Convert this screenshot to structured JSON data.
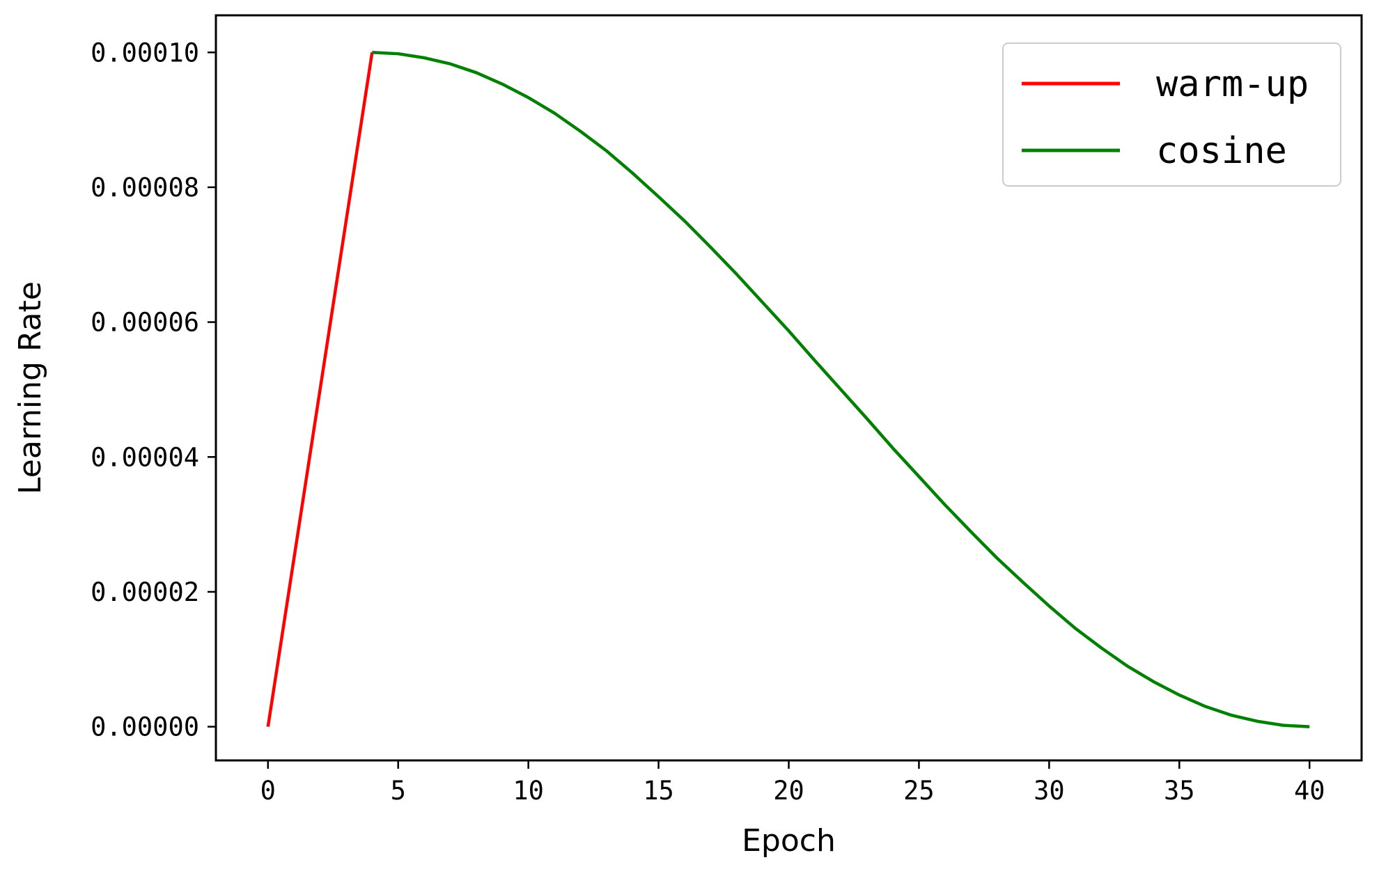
{
  "chart_data": {
    "type": "line",
    "xlabel": "Epoch",
    "ylabel": "Learning Rate",
    "xlim": [
      -2,
      42
    ],
    "ylim": [
      -5e-06,
      0.0001055
    ],
    "xticks": [
      {
        "value": 0,
        "label": "0"
      },
      {
        "value": 5,
        "label": "5"
      },
      {
        "value": 10,
        "label": "10"
      },
      {
        "value": 15,
        "label": "15"
      },
      {
        "value": 20,
        "label": "20"
      },
      {
        "value": 25,
        "label": "25"
      },
      {
        "value": 30,
        "label": "30"
      },
      {
        "value": 35,
        "label": "35"
      },
      {
        "value": 40,
        "label": "40"
      }
    ],
    "yticks": [
      {
        "value": 0,
        "label": "0.00000"
      },
      {
        "value": 2e-05,
        "label": "0.00002"
      },
      {
        "value": 4e-05,
        "label": "0.00004"
      },
      {
        "value": 6e-05,
        "label": "0.00006"
      },
      {
        "value": 8e-05,
        "label": "0.00008"
      },
      {
        "value": 0.0001,
        "label": "0.00010"
      }
    ],
    "grid": false,
    "legend_position": "top-right",
    "series": [
      {
        "name": "warm-up",
        "color": "#ff0000",
        "x": [
          0,
          4
        ],
        "y": [
          0,
          0.0001
        ]
      },
      {
        "name": "cosine",
        "color": "#008000",
        "x": [
          4,
          5,
          6,
          7,
          8,
          9,
          10,
          11,
          12,
          13,
          14,
          15,
          16,
          17,
          18,
          19,
          20,
          21,
          22,
          23,
          24,
          25,
          26,
          27,
          28,
          29,
          30,
          31,
          32,
          33,
          34,
          35,
          36,
          37,
          38,
          39,
          40
        ],
        "y": [
          0.0001,
          9.98e-05,
          9.92e-05,
          9.83e-05,
          9.7e-05,
          9.53e-05,
          9.33e-05,
          9.1e-05,
          8.83e-05,
          8.54e-05,
          8.21e-05,
          7.86e-05,
          7.5e-05,
          7.11e-05,
          6.71e-05,
          6.29e-05,
          5.87e-05,
          5.43e-05,
          5e-05,
          4.57e-05,
          4.13e-05,
          3.71e-05,
          3.29e-05,
          2.89e-05,
          2.5e-05,
          2.14e-05,
          1.79e-05,
          1.46e-05,
          1.17e-05,
          9e-06,
          6.7e-06,
          4.7e-06,
          3e-06,
          1.7e-06,
          8e-07,
          2e-07,
          0.0
        ]
      }
    ]
  }
}
